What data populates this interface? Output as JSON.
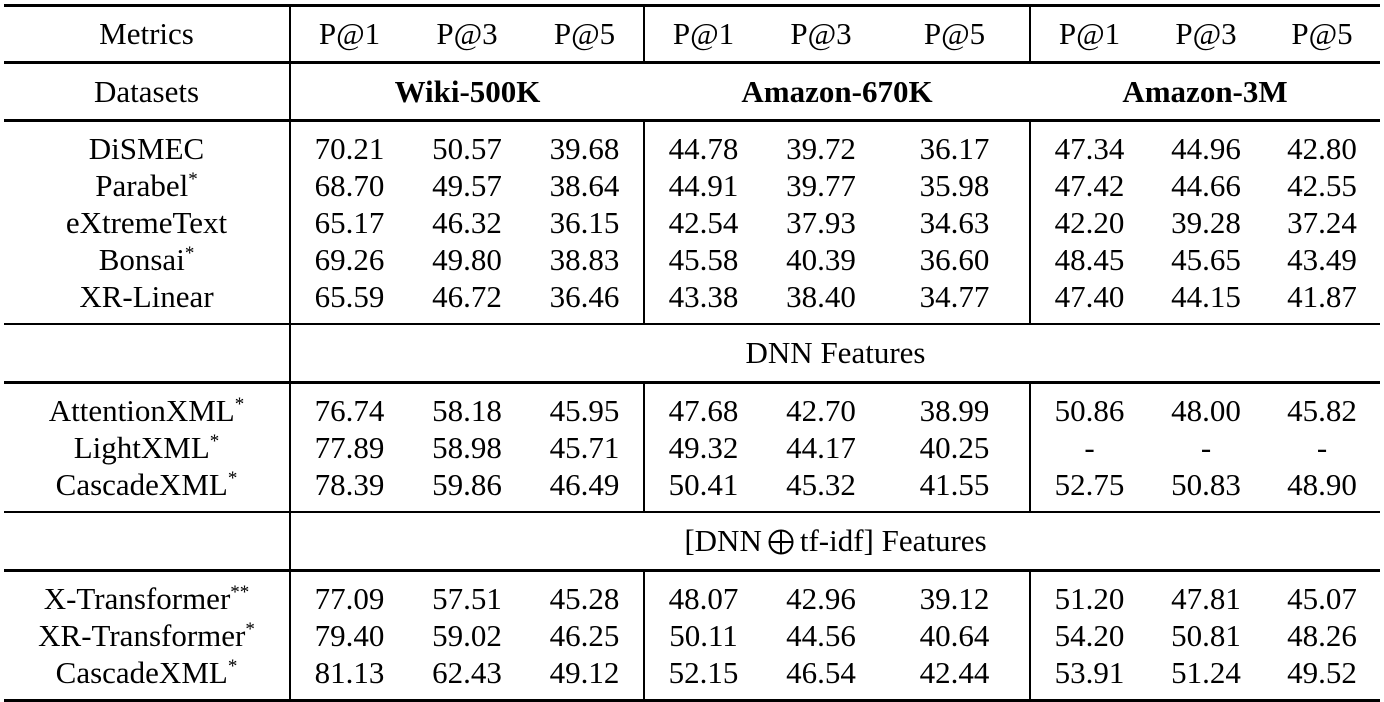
{
  "header": {
    "metrics_label": "Metrics",
    "metric_cols": [
      "P@1",
      "P@3",
      "P@5",
      "P@1",
      "P@3",
      "P@5",
      "P@1",
      "P@3",
      "P@5"
    ],
    "datasets_label": "Datasets",
    "datasets": [
      "Wiki-500K",
      "Amazon-670K",
      "Amazon-3M"
    ]
  },
  "sections": [
    {
      "label": "",
      "rows": [
        {
          "method": "DiSMEC",
          "mark": "",
          "values": [
            "70.21",
            "50.57",
            "39.68",
            "44.78",
            "39.72",
            "36.17",
            "47.34",
            "44.96",
            "42.80"
          ],
          "bold": []
        },
        {
          "method": "Parabel",
          "mark": "*",
          "values": [
            "68.70",
            "49.57",
            "38.64",
            "44.91",
            "39.77",
            "35.98",
            "47.42",
            "44.66",
            "42.55"
          ],
          "bold": []
        },
        {
          "method": "eXtremeText",
          "mark": "",
          "values": [
            "65.17",
            "46.32",
            "36.15",
            "42.54",
            "37.93",
            "34.63",
            "42.20",
            "39.28",
            "37.24"
          ],
          "bold": []
        },
        {
          "method": "Bonsai",
          "mark": "*",
          "values": [
            "69.26",
            "49.80",
            "38.83",
            "45.58",
            "40.39",
            "36.60",
            "48.45",
            "45.65",
            "43.49"
          ],
          "bold": []
        },
        {
          "method": "XR-Linear",
          "mark": "",
          "values": [
            "65.59",
            "46.72",
            "36.46",
            "43.38",
            "38.40",
            "34.77",
            "47.40",
            "44.15",
            "41.87"
          ],
          "bold": []
        }
      ]
    },
    {
      "label": "DNN Features",
      "rows": [
        {
          "method": "AttentionXML",
          "mark": "*",
          "values": [
            "76.74",
            "58.18",
            "45.95",
            "47.68",
            "42.70",
            "38.99",
            "50.86",
            "48.00",
            "45.82"
          ],
          "bold": []
        },
        {
          "method": "LightXML",
          "mark": "*",
          "values": [
            "77.89",
            "58.98",
            "45.71",
            "49.32",
            "44.17",
            "40.25",
            "-",
            "-",
            "-"
          ],
          "bold": []
        },
        {
          "method": "CascadeXML",
          "mark": "*",
          "values": [
            "78.39",
            "59.86",
            "46.49",
            "50.41",
            "45.32",
            "41.55",
            "52.75",
            "50.83",
            "48.90"
          ],
          "bold": [
            0,
            1,
            2,
            3,
            4,
            5,
            6,
            7,
            8
          ]
        }
      ]
    },
    {
      "label_before": "[DNN",
      "label_symbol": "oplus",
      "label_after": "tf-idf] Features",
      "rows": [
        {
          "method": "X-Transformer",
          "mark": "**",
          "values": [
            "77.09",
            "57.51",
            "45.28",
            "48.07",
            "42.96",
            "39.12",
            "51.20",
            "47.81",
            "45.07"
          ],
          "bold": []
        },
        {
          "method": "XR-Transformer",
          "mark": "*",
          "values": [
            "79.40",
            "59.02",
            "46.25",
            "50.11",
            "44.56",
            "40.64",
            "54.20",
            "50.81",
            "48.26"
          ],
          "bold": [
            6
          ]
        },
        {
          "method": "CascadeXML",
          "mark": "*",
          "values": [
            "81.13",
            "62.43",
            "49.12",
            "52.15",
            "46.54",
            "42.44",
            "53.91",
            "51.24",
            "49.52"
          ],
          "bold": [
            0,
            1,
            2,
            3,
            4,
            5,
            7,
            8
          ]
        }
      ]
    }
  ]
}
